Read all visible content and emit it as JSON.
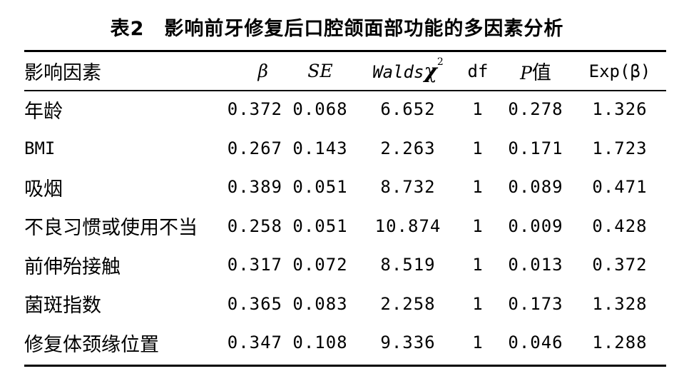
{
  "title": "表2　影响前牙修复后口腔颌面部功能的多因素分析",
  "header": {
    "factor": "影响因素",
    "beta": "β",
    "se": "SE",
    "walds_prefix": "Walds",
    "walds_chi": "χ",
    "walds_sup": "2",
    "df": "df",
    "p_italic": "P",
    "p_suffix": "值",
    "exp": "Exp(β)"
  },
  "rows": [
    {
      "factor": "年龄",
      "beta": "0.372",
      "se": "0.068",
      "walds": "6.652",
      "df": "1",
      "p": "0.278",
      "exp": "1.326"
    },
    {
      "factor": "BMI",
      "beta": "0.267",
      "se": "0.143",
      "walds": "2.263",
      "df": "1",
      "p": "0.171",
      "exp": "1.723"
    },
    {
      "factor": "吸烟",
      "beta": "0.389",
      "se": "0.051",
      "walds": "8.732",
      "df": "1",
      "p": "0.089",
      "exp": "0.471"
    },
    {
      "factor": "不良习惯或使用不当",
      "beta": "0.258",
      "se": "0.051",
      "walds": "10.874",
      "df": "1",
      "p": "0.009",
      "exp": "0.428"
    },
    {
      "factor": "前伸殆接触",
      "beta": "0.317",
      "se": "0.072",
      "walds": "8.519",
      "df": "1",
      "p": "0.013",
      "exp": "0.372"
    },
    {
      "factor": "菌斑指数",
      "beta": "0.365",
      "se": "0.083",
      "walds": "2.258",
      "df": "1",
      "p": "0.173",
      "exp": "1.328"
    },
    {
      "factor": "修复体颈缘位置",
      "beta": "0.347",
      "se": "0.108",
      "walds": "9.336",
      "df": "1",
      "p": "0.046",
      "exp": "1.288"
    }
  ]
}
